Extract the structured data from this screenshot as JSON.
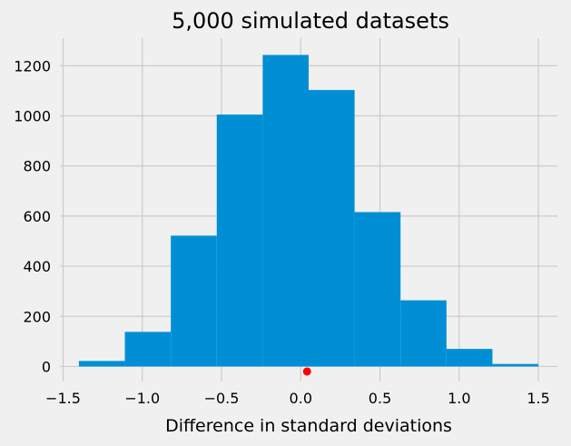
{
  "chart_data": {
    "type": "bar",
    "title": "5,000 simulated datasets",
    "xlabel": "Difference in standard deviations",
    "ylabel": "",
    "xlim": [
      -1.52,
      1.62
    ],
    "ylim": [
      -60,
      1310
    ],
    "grid": true,
    "bar_color": "#008fd5",
    "grid_color": "#cbcbcb",
    "background_color": "#f0f0f0",
    "bins": [
      {
        "x0": -1.4,
        "x1": -1.11,
        "count": 22
      },
      {
        "x0": -1.11,
        "x1": -0.82,
        "count": 138
      },
      {
        "x0": -0.82,
        "x1": -0.53,
        "count": 522
      },
      {
        "x0": -0.53,
        "x1": -0.24,
        "count": 1005
      },
      {
        "x0": -0.24,
        "x1": 0.05,
        "count": 1243
      },
      {
        "x0": 0.05,
        "x1": 0.34,
        "count": 1103
      },
      {
        "x0": 0.34,
        "x1": 0.63,
        "count": 616
      },
      {
        "x0": 0.63,
        "x1": 0.92,
        "count": 264
      },
      {
        "x0": 0.92,
        "x1": 1.21,
        "count": 70
      },
      {
        "x0": 1.21,
        "x1": 1.5,
        "count": 10
      }
    ],
    "points": [
      {
        "x": 0.04,
        "y": -20,
        "color": "#ff0000"
      }
    ],
    "xticks": [
      {
        "value": -1.5,
        "label": "−1.5"
      },
      {
        "value": -1.0,
        "label": "−1.0"
      },
      {
        "value": -0.5,
        "label": "−0.5"
      },
      {
        "value": 0.0,
        "label": "0.0"
      },
      {
        "value": 0.5,
        "label": "0.5"
      },
      {
        "value": 1.0,
        "label": "1.0"
      },
      {
        "value": 1.5,
        "label": "1.5"
      }
    ],
    "yticks": [
      {
        "value": 0,
        "label": "0"
      },
      {
        "value": 200,
        "label": "200"
      },
      {
        "value": 400,
        "label": "400"
      },
      {
        "value": 600,
        "label": "600"
      },
      {
        "value": 800,
        "label": "800"
      },
      {
        "value": 1000,
        "label": "1000"
      },
      {
        "value": 1200,
        "label": "1200"
      }
    ]
  }
}
